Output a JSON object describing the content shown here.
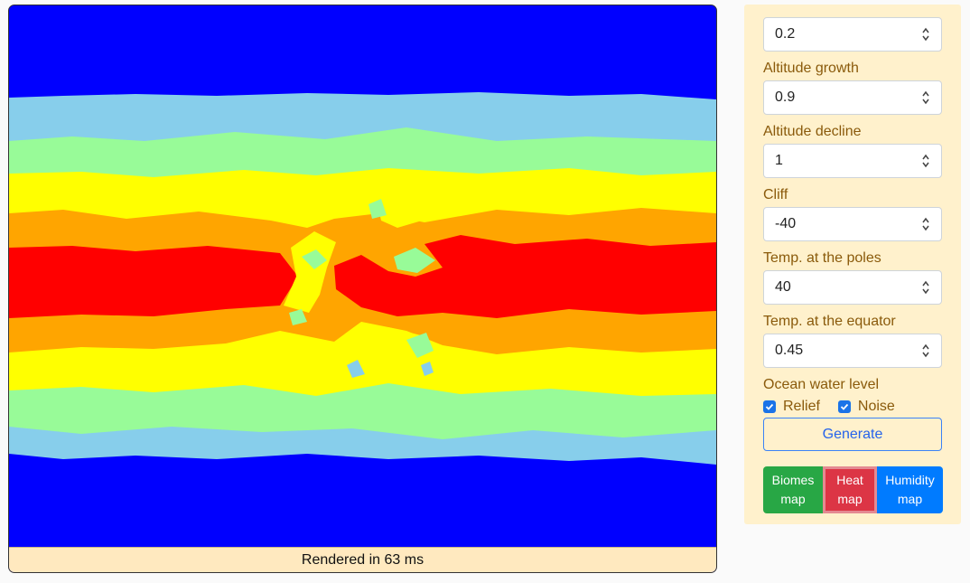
{
  "map": {
    "status": "Rendered in 63 ms",
    "colors": {
      "cold": "#0000ff",
      "cool": "#87ceeb",
      "mild": "#98fb98",
      "warm": "#ffff00",
      "hot": "#ffa500",
      "very_hot": "#ff0000"
    }
  },
  "settings": {
    "fields": [
      {
        "value": "0.2",
        "label": "Altitude growth"
      },
      {
        "value": "0.9",
        "label": "Altitude decline"
      },
      {
        "value": "1",
        "label": "Cliff"
      },
      {
        "value": "-40",
        "label": "Temp. at the poles"
      },
      {
        "value": "40",
        "label": "Temp. at the equator"
      },
      {
        "value": "0.45",
        "label": "Ocean water level"
      }
    ],
    "checkboxes": [
      {
        "label": "Relief",
        "checked": true
      },
      {
        "label": "Noise",
        "checked": true
      }
    ],
    "generate_label": "Generate",
    "map_buttons": {
      "biomes": {
        "line1": "Biomes",
        "line2": "map"
      },
      "heat": {
        "line1": "Heat",
        "line2": "map"
      },
      "humidity": {
        "line1": "Humidity",
        "line2": "map"
      }
    }
  }
}
